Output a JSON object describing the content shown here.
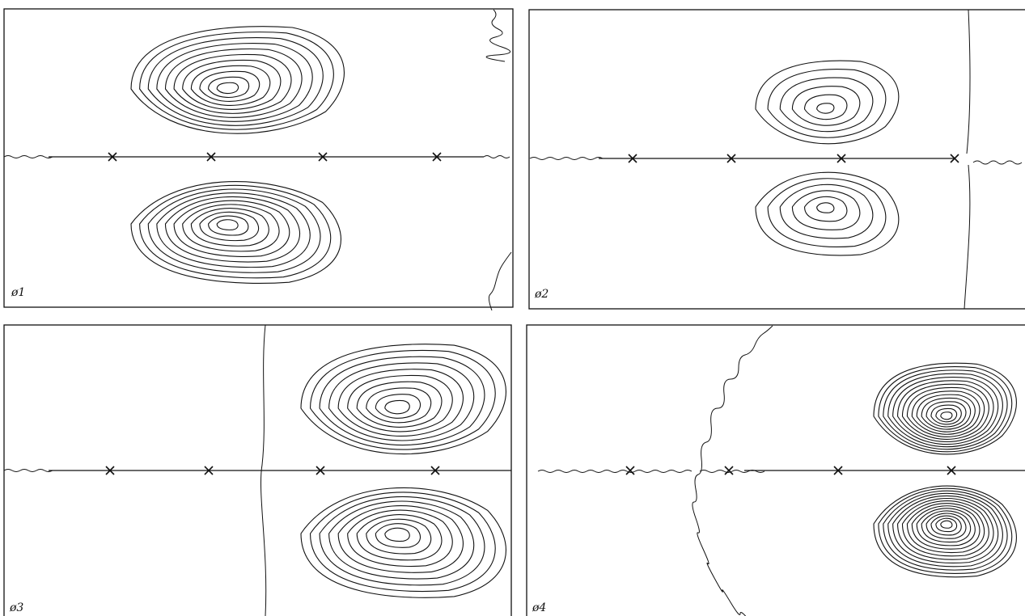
{
  "panels": [
    {
      "label": "ø1",
      "lobe_count": 11
    },
    {
      "label": "ø2",
      "lobe_count": 6
    },
    {
      "label": "ø3",
      "lobe_count": 10
    },
    {
      "label": "ø4",
      "lobe_count": 15
    }
  ],
  "colors": {
    "line": "#111111",
    "background": "#ffffff"
  }
}
